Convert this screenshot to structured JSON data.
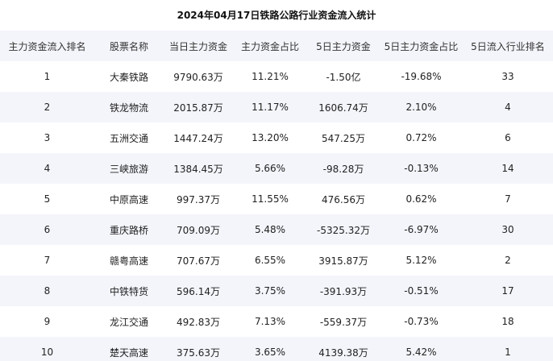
{
  "title": "2024年04月17日铁路公路行业资金流入统计",
  "columns": [
    "主力资金流入排名",
    "股票名称",
    "当日主力资金",
    "主力资金占比",
    "5日主力资金",
    "5日主力资金占比",
    "5日流入行业排名"
  ],
  "rows": [
    [
      "1",
      "大秦铁路",
      "9790.63万",
      "11.21%",
      "-1.50亿",
      "-19.68%",
      "33"
    ],
    [
      "2",
      "铁龙物流",
      "2015.87万",
      "11.17%",
      "1606.74万",
      "2.10%",
      "4"
    ],
    [
      "3",
      "五洲交通",
      "1447.24万",
      "13.20%",
      "547.25万",
      "0.72%",
      "6"
    ],
    [
      "4",
      "三峡旅游",
      "1384.45万",
      "5.66%",
      "-98.28万",
      "-0.13%",
      "14"
    ],
    [
      "5",
      "中原高速",
      "997.37万",
      "11.55%",
      "476.56万",
      "0.62%",
      "7"
    ],
    [
      "6",
      "重庆路桥",
      "709.09万",
      "5.48%",
      "-5325.32万",
      "-6.97%",
      "30"
    ],
    [
      "7",
      "赣粤高速",
      "707.67万",
      "6.55%",
      "3915.87万",
      "5.12%",
      "2"
    ],
    [
      "8",
      "中铁特货",
      "596.14万",
      "3.75%",
      "-391.93万",
      "-0.51%",
      "17"
    ],
    [
      "9",
      "龙江交通",
      "492.83万",
      "7.13%",
      "-559.37万",
      "-0.73%",
      "18"
    ],
    [
      "10",
      "楚天高速",
      "375.63万",
      "3.65%",
      "4139.38万",
      "5.42%",
      "1"
    ]
  ]
}
